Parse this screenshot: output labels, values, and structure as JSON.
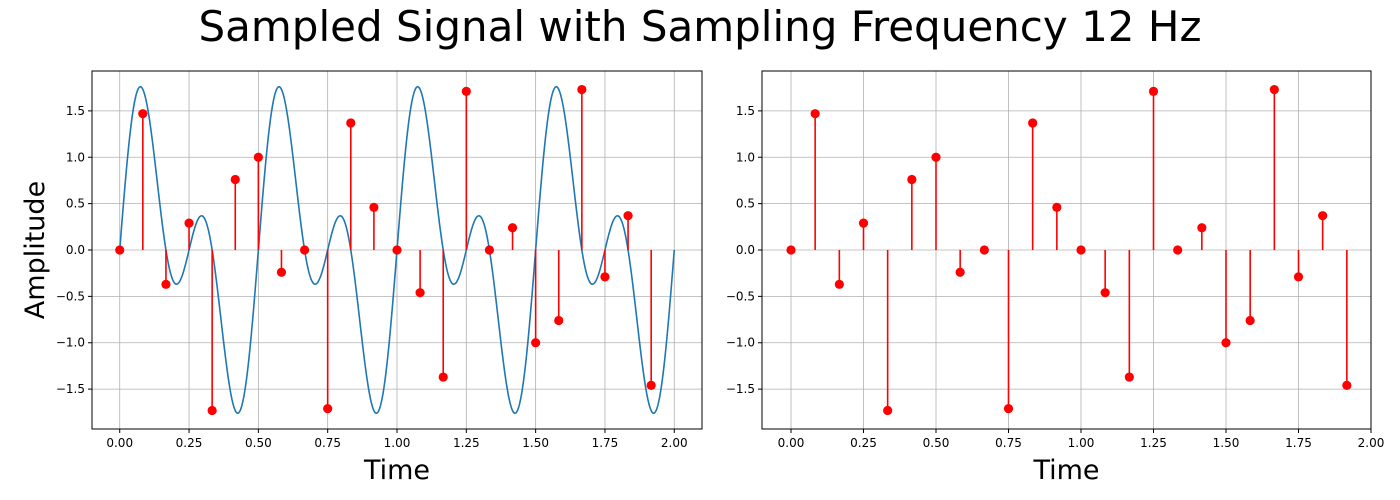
{
  "figure": {
    "title": "Sampled Signal with Sampling Frequency 12 Hz"
  },
  "colors": {
    "continuous": "#1f77b4",
    "samples": "#ff0000",
    "grid": "#b0b0b0",
    "axes": "#000000"
  },
  "chart_data": [
    {
      "type": "line",
      "title": "",
      "xlabel": "Time",
      "ylabel": "Amplitude",
      "xlim": [
        -0.1,
        2.1
      ],
      "ylim": [
        -1.93,
        1.93
      ],
      "xticks": [
        0,
        0.25,
        0.5,
        0.75,
        1,
        1.25,
        1.5,
        1.75,
        2
      ],
      "xtick_labels": [
        "0.00",
        "0.25",
        "0.50",
        "0.75",
        "1.00",
        "1.25",
        "1.50",
        "1.75",
        "2.00"
      ],
      "yticks": [
        -1.5,
        -1,
        -0.5,
        0,
        0.5,
        1,
        1.5
      ],
      "ytick_labels": [
        "−1.5",
        "−1.0",
        "−0.5",
        "0.0",
        "0.5",
        "1.0",
        "1.5"
      ],
      "grid": true,
      "series": [
        {
          "kind": "continuous",
          "function": "sin(2*pi*2*t) + sin(2*pi*4*t)",
          "x_range": [
            0,
            2
          ]
        },
        {
          "kind": "stem",
          "x": [
            0,
            0.0833,
            0.1667,
            0.25,
            0.3333,
            0.4167,
            0.5,
            0.5833,
            0.6667,
            0.75,
            0.8333,
            0.9167,
            1,
            1.0833,
            1.1667,
            1.25,
            1.3333,
            1.4167,
            1.5,
            1.5833,
            1.6667,
            1.75,
            1.8333,
            1.9167
          ],
          "y": [
            0,
            1.47,
            -0.37,
            0.29,
            -1.73,
            0.76,
            1.0,
            -0.24,
            0,
            -1.71,
            1.37,
            0.46,
            0,
            -0.46,
            -1.37,
            1.71,
            0,
            0.24,
            -1.0,
            -0.76,
            1.73,
            -0.29,
            0.37,
            -1.46
          ]
        }
      ]
    },
    {
      "type": "scatter",
      "title": "",
      "xlabel": "Time",
      "ylabel": "",
      "xlim": [
        -0.1,
        2.0
      ],
      "ylim": [
        -1.93,
        1.93
      ],
      "xticks": [
        0,
        0.25,
        0.5,
        0.75,
        1,
        1.25,
        1.5,
        1.75,
        2
      ],
      "xtick_labels": [
        "0.00",
        "0.25",
        "0.50",
        "0.75",
        "1.00",
        "1.25",
        "1.50",
        "1.75",
        "2.00"
      ],
      "yticks": [
        -1.5,
        -1,
        -0.5,
        0,
        0.5,
        1,
        1.5
      ],
      "ytick_labels": [
        "−1.5",
        "−1.0",
        "−0.5",
        "0.0",
        "0.5",
        "1.0",
        "1.5"
      ],
      "grid": true,
      "series": [
        {
          "kind": "stem",
          "x": [
            0,
            0.0833,
            0.1667,
            0.25,
            0.3333,
            0.4167,
            0.5,
            0.5833,
            0.6667,
            0.75,
            0.8333,
            0.9167,
            1,
            1.0833,
            1.1667,
            1.25,
            1.3333,
            1.4167,
            1.5,
            1.5833,
            1.6667,
            1.75,
            1.8333,
            1.9167
          ],
          "y": [
            0,
            1.47,
            -0.37,
            0.29,
            -1.73,
            0.76,
            1.0,
            -0.24,
            0,
            -1.71,
            1.37,
            0.46,
            0,
            -0.46,
            -1.37,
            1.71,
            0,
            0.24,
            -1.0,
            -0.76,
            1.73,
            -0.29,
            0.37,
            -1.46
          ]
        }
      ]
    }
  ]
}
